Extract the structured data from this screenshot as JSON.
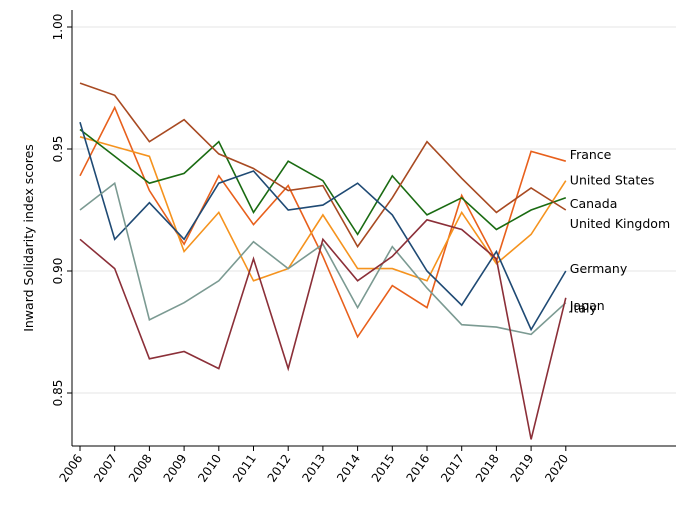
{
  "chart_data": {
    "type": "line",
    "title": "",
    "xlabel": "",
    "ylabel": "Inward Solidarity index scores",
    "x": [
      "2006",
      "2007",
      "2008",
      "2009",
      "2010",
      "2011",
      "2012",
      "2013",
      "2014",
      "2015",
      "2016",
      "2017",
      "2018",
      "2019",
      "2020"
    ],
    "ylim": [
      0.825,
      1.0
    ],
    "yticks": [
      "0.85",
      "0.90",
      "0.95",
      "1.00"
    ],
    "grid": true,
    "series": [
      {
        "name": "France",
        "color": "#e8601c",
        "values": [
          0.939,
          0.967,
          0.933,
          0.911,
          0.939,
          0.919,
          0.935,
          0.906,
          0.873,
          0.894,
          0.885,
          0.931,
          0.904,
          0.949,
          0.945
        ]
      },
      {
        "name": "United States",
        "color": "#f5931e",
        "values": [
          0.955,
          0.951,
          0.947,
          0.908,
          0.924,
          0.896,
          0.901,
          0.923,
          0.901,
          0.901,
          0.896,
          0.924,
          0.903,
          0.915,
          0.937
        ]
      },
      {
        "name": "Canada",
        "color": "#1a6b12",
        "values": [
          0.958,
          0.947,
          0.936,
          0.94,
          0.953,
          0.924,
          0.945,
          0.937,
          0.915,
          0.939,
          0.923,
          0.93,
          0.917,
          0.925,
          0.93
        ]
      },
      {
        "name": "United Kingdom",
        "color": "#a84a22",
        "values": [
          0.977,
          0.972,
          0.953,
          0.962,
          0.948,
          0.942,
          0.933,
          0.935,
          0.91,
          0.93,
          0.953,
          0.938,
          0.924,
          0.934,
          0.925
        ]
      },
      {
        "name": "Germany",
        "color": "#1f4a74",
        "values": [
          0.961,
          0.913,
          0.928,
          0.913,
          0.936,
          0.941,
          0.925,
          0.927,
          0.936,
          0.923,
          0.9,
          0.886,
          0.908,
          0.876,
          0.9
        ]
      },
      {
        "name": "Italy",
        "color": "#7b9a92",
        "values": [
          0.925,
          0.936,
          0.88,
          0.887,
          0.896,
          0.912,
          0.901,
          0.911,
          0.885,
          0.91,
          0.893,
          0.878,
          0.877,
          0.874,
          0.887
        ]
      },
      {
        "name": "Japan",
        "color": "#8b2f38",
        "values": [
          0.913,
          0.901,
          0.864,
          0.867,
          0.86,
          0.905,
          0.86,
          0.913,
          0.896,
          0.906,
          0.921,
          0.917,
          0.905,
          0.831,
          0.889
        ]
      }
    ]
  }
}
